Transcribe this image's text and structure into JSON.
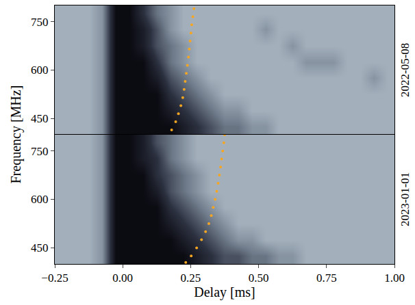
{
  "chart_data": [
    {
      "type": "heatmap",
      "title": "2022-05-08",
      "ylabel": "Frequency [MHz]",
      "tick_labels": "y",
      "xlim": [
        -0.25,
        1.0
      ],
      "xticks": [
        {
          "value": -0.25,
          "label": "−0.25"
        },
        {
          "value": 0,
          "label": "0.00"
        },
        {
          "value": 0.25,
          "label": "0.25"
        },
        {
          "value": 0.5,
          "label": "0.50"
        },
        {
          "value": 0.75,
          "label": "0.75"
        },
        {
          "value": 1.0,
          "label": "1.00"
        }
      ],
      "ylim": [
        400,
        800
      ],
      "yticks": [
        450,
        600,
        750
      ],
      "heatmap": {
        "x": [
          -0.225,
          -0.175,
          -0.125,
          -0.075,
          -0.025,
          0.025,
          0.075,
          0.125,
          0.175,
          0.225,
          0.275,
          0.325,
          0.375,
          0.425,
          0.475,
          0.525,
          0.575,
          0.625,
          0.675,
          0.725,
          0.775,
          0.825,
          0.875,
          0.925,
          0.975
        ],
        "y": [
          425,
          475,
          525,
          575,
          625,
          675,
          725,
          775
        ],
        "cells": [
          [
            6,
            6,
            6,
            5,
            0,
            0,
            0,
            0,
            0,
            1,
            2,
            3,
            4,
            4,
            5,
            5,
            6,
            6,
            6,
            6,
            6,
            6,
            6,
            6,
            6
          ],
          [
            6,
            6,
            6,
            5,
            0,
            0,
            0,
            0,
            1,
            2,
            3,
            4,
            5,
            5,
            6,
            6,
            6,
            6,
            6,
            6,
            6,
            6,
            6,
            6,
            6
          ],
          [
            6,
            6,
            6,
            5,
            0,
            0,
            0,
            0,
            2,
            3,
            4,
            5,
            6,
            6,
            6,
            6,
            6,
            6,
            6,
            6,
            6,
            6,
            6,
            6,
            6
          ],
          [
            6,
            6,
            6,
            5,
            0,
            0,
            0,
            1,
            3,
            4,
            5,
            6,
            6,
            6,
            6,
            6,
            6,
            6,
            6,
            6,
            6,
            6,
            6,
            5,
            6
          ],
          [
            6,
            6,
            6,
            5,
            0,
            0,
            0,
            2,
            4,
            5,
            6,
            6,
            6,
            6,
            6,
            6,
            6,
            6,
            5,
            5,
            5,
            6,
            6,
            6,
            6
          ],
          [
            6,
            6,
            6,
            5,
            0,
            0,
            1,
            3,
            4,
            5,
            6,
            6,
            6,
            6,
            6,
            6,
            6,
            5,
            6,
            6,
            6,
            6,
            6,
            6,
            6
          ],
          [
            6,
            6,
            6,
            5,
            0,
            0,
            1,
            3,
            5,
            6,
            6,
            6,
            6,
            6,
            6,
            5,
            6,
            6,
            6,
            6,
            6,
            6,
            6,
            6,
            6
          ],
          [
            6,
            6,
            6,
            5,
            0,
            0,
            2,
            4,
            5,
            6,
            6,
            6,
            6,
            6,
            6,
            6,
            6,
            6,
            6,
            6,
            6,
            6,
            6,
            6,
            6
          ]
        ]
      },
      "series": [
        {
          "type": "scatter",
          "marker": "circle",
          "color": "#f5a623",
          "x": [
            0.262,
            0.258,
            0.254,
            0.251,
            0.248,
            0.245,
            0.242,
            0.238,
            0.234,
            0.23,
            0.226,
            0.221,
            0.214,
            0.205,
            0.195,
            0.18
          ],
          "y": [
            790,
            765,
            740,
            715,
            690,
            665,
            640,
            615,
            590,
            565,
            540,
            515,
            490,
            465,
            440,
            415
          ]
        }
      ]
    },
    {
      "type": "heatmap",
      "title": "2023-01-01",
      "xlabel": "Delay [ms]",
      "xlim": [
        -0.25,
        1.0
      ],
      "xticks": [
        {
          "value": -0.25,
          "label": "−0.25"
        },
        {
          "value": 0,
          "label": "0.00"
        },
        {
          "value": 0.25,
          "label": "0.25"
        },
        {
          "value": 0.5,
          "label": "0.50"
        },
        {
          "value": 0.75,
          "label": "0.75"
        },
        {
          "value": 1.0,
          "label": "1.00"
        }
      ],
      "ylim": [
        400,
        800
      ],
      "yticks": [
        450,
        600,
        750
      ],
      "heatmap": {
        "x": [
          -0.225,
          -0.175,
          -0.125,
          -0.075,
          -0.025,
          0.025,
          0.075,
          0.125,
          0.175,
          0.225,
          0.275,
          0.325,
          0.375,
          0.425,
          0.475,
          0.525,
          0.575,
          0.625,
          0.675,
          0.725,
          0.775,
          0.825,
          0.875,
          0.925,
          0.975
        ],
        "y": [
          425,
          475,
          525,
          575,
          625,
          675,
          725,
          775
        ],
        "cells": [
          [
            6,
            6,
            6,
            5,
            0,
            0,
            0,
            0,
            0,
            0,
            1,
            2,
            3,
            3,
            4,
            4,
            5,
            5,
            6,
            6,
            6,
            6,
            6,
            6,
            6
          ],
          [
            6,
            6,
            6,
            5,
            0,
            0,
            0,
            0,
            0,
            1,
            2,
            3,
            4,
            5,
            5,
            6,
            6,
            6,
            6,
            6,
            6,
            6,
            6,
            6,
            6
          ],
          [
            6,
            6,
            6,
            5,
            0,
            0,
            0,
            0,
            1,
            2,
            3,
            4,
            5,
            6,
            6,
            6,
            6,
            6,
            6,
            6,
            6,
            6,
            6,
            6,
            6
          ],
          [
            6,
            6,
            6,
            5,
            0,
            0,
            0,
            0,
            2,
            3,
            4,
            5,
            6,
            6,
            6,
            6,
            6,
            6,
            6,
            6,
            6,
            6,
            6,
            6,
            6
          ],
          [
            6,
            6,
            6,
            5,
            0,
            0,
            0,
            1,
            3,
            4,
            5,
            6,
            6,
            6,
            6,
            6,
            6,
            6,
            6,
            6,
            6,
            6,
            6,
            6,
            6
          ],
          [
            6,
            6,
            6,
            5,
            0,
            0,
            0,
            2,
            3,
            4,
            5,
            6,
            6,
            6,
            6,
            6,
            6,
            6,
            6,
            6,
            6,
            6,
            6,
            6,
            6
          ],
          [
            6,
            6,
            6,
            5,
            0,
            0,
            1,
            2,
            4,
            5,
            6,
            6,
            6,
            6,
            6,
            6,
            6,
            6,
            6,
            6,
            6,
            6,
            6,
            6,
            6
          ],
          [
            6,
            6,
            6,
            5,
            0,
            0,
            1,
            3,
            4,
            5,
            6,
            6,
            6,
            6,
            6,
            6,
            6,
            6,
            6,
            6,
            6,
            6,
            6,
            6,
            6
          ]
        ]
      },
      "series": [
        {
          "type": "scatter",
          "marker": "circle",
          "color": "#f5a623",
          "x": [
            0.375,
            0.372,
            0.368,
            0.364,
            0.36,
            0.356,
            0.351,
            0.346,
            0.34,
            0.333,
            0.326,
            0.317,
            0.305,
            0.29,
            0.272,
            0.252,
            0.232
          ],
          "y": [
            800,
            775,
            750,
            725,
            700,
            675,
            650,
            625,
            600,
            575,
            550,
            525,
            500,
            475,
            450,
            425,
            405
          ]
        }
      ]
    }
  ]
}
